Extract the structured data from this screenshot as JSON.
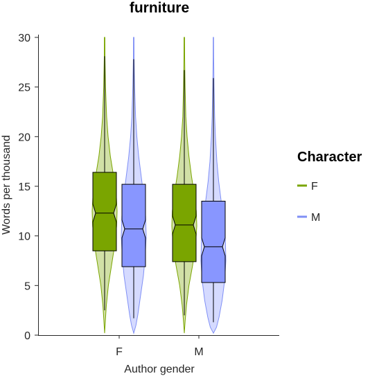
{
  "chart_data": {
    "type": "violin-boxplot",
    "title": "furniture",
    "xlabel": "Author gender",
    "ylabel": "Words per thousand",
    "categories": [
      "F",
      "M"
    ],
    "ylim": [
      0,
      30
    ],
    "yticks": [
      0,
      5,
      10,
      15,
      20,
      25,
      30
    ],
    "grid": false,
    "legend": {
      "title": "Character",
      "position": "right",
      "entries": [
        "F",
        "M"
      ]
    },
    "series": [
      {
        "name": "F",
        "color": "#7aa500",
        "fill_color": "#7aa500",
        "groups": [
          {
            "category": "F",
            "q1": 8.5,
            "median": 12.3,
            "q3": 16.4,
            "whisker_low": 2.5,
            "whisker_high": 28.1,
            "min": 0.2,
            "max": 30,
            "density": [
              [
                0.2,
                0.0
              ],
              [
                1.5,
                0.06
              ],
              [
                3,
                0.14
              ],
              [
                5,
                0.3
              ],
              [
                7,
                0.55
              ],
              [
                9,
                0.8
              ],
              [
                11,
                0.96
              ],
              [
                12.5,
                1.0
              ],
              [
                14,
                0.94
              ],
              [
                16,
                0.72
              ],
              [
                18,
                0.46
              ],
              [
                20,
                0.28
              ],
              [
                22,
                0.16
              ],
              [
                25,
                0.07
              ],
              [
                28,
                0.03
              ],
              [
                30,
                0.02
              ]
            ]
          },
          {
            "category": "M",
            "q1": 7.4,
            "median": 11.1,
            "q3": 15.2,
            "whisker_low": 2.0,
            "whisker_high": 26.7,
            "min": 0.2,
            "max": 30,
            "density": [
              [
                0.2,
                0.0
              ],
              [
                1.5,
                0.07
              ],
              [
                3,
                0.17
              ],
              [
                5,
                0.37
              ],
              [
                7,
                0.66
              ],
              [
                9,
                0.9
              ],
              [
                11,
                1.0
              ],
              [
                12.5,
                0.96
              ],
              [
                14,
                0.82
              ],
              [
                16,
                0.58
              ],
              [
                18,
                0.37
              ],
              [
                20,
                0.22
              ],
              [
                22,
                0.12
              ],
              [
                25,
                0.06
              ],
              [
                28,
                0.03
              ],
              [
                30,
                0.02
              ]
            ]
          }
        ]
      },
      {
        "name": "M",
        "color": "#7f8ff5",
        "fill_color": "#8896ff",
        "groups": [
          {
            "category": "F",
            "q1": 6.9,
            "median": 10.7,
            "q3": 15.2,
            "whisker_low": 1.7,
            "whisker_high": 27.8,
            "min": 0.2,
            "max": 30,
            "density": [
              [
                0.2,
                0.0
              ],
              [
                1,
                0.18
              ],
              [
                2,
                0.32
              ],
              [
                4,
                0.55
              ],
              [
                6,
                0.78
              ],
              [
                8,
                0.92
              ],
              [
                10,
                1.0
              ],
              [
                12,
                0.95
              ],
              [
                14,
                0.8
              ],
              [
                16,
                0.6
              ],
              [
                18,
                0.4
              ],
              [
                20,
                0.25
              ],
              [
                22,
                0.15
              ],
              [
                25,
                0.07
              ],
              [
                28,
                0.03
              ],
              [
                30,
                0.02
              ]
            ]
          },
          {
            "category": "M",
            "q1": 5.3,
            "median": 8.9,
            "q3": 13.5,
            "whisker_low": 1.3,
            "whisker_high": 25.9,
            "min": 0.2,
            "max": 30,
            "density": [
              [
                0.2,
                0.0
              ],
              [
                0.8,
                0.25
              ],
              [
                1.8,
                0.45
              ],
              [
                3.5,
                0.7
              ],
              [
                5.5,
                0.9
              ],
              [
                7.5,
                1.0
              ],
              [
                9.5,
                0.96
              ],
              [
                11.5,
                0.82
              ],
              [
                13.5,
                0.62
              ],
              [
                15.5,
                0.42
              ],
              [
                17.5,
                0.28
              ],
              [
                20,
                0.16
              ],
              [
                22,
                0.1
              ],
              [
                25,
                0.05
              ],
              [
                28,
                0.02
              ],
              [
                30,
                0.015
              ]
            ]
          }
        ]
      }
    ]
  }
}
